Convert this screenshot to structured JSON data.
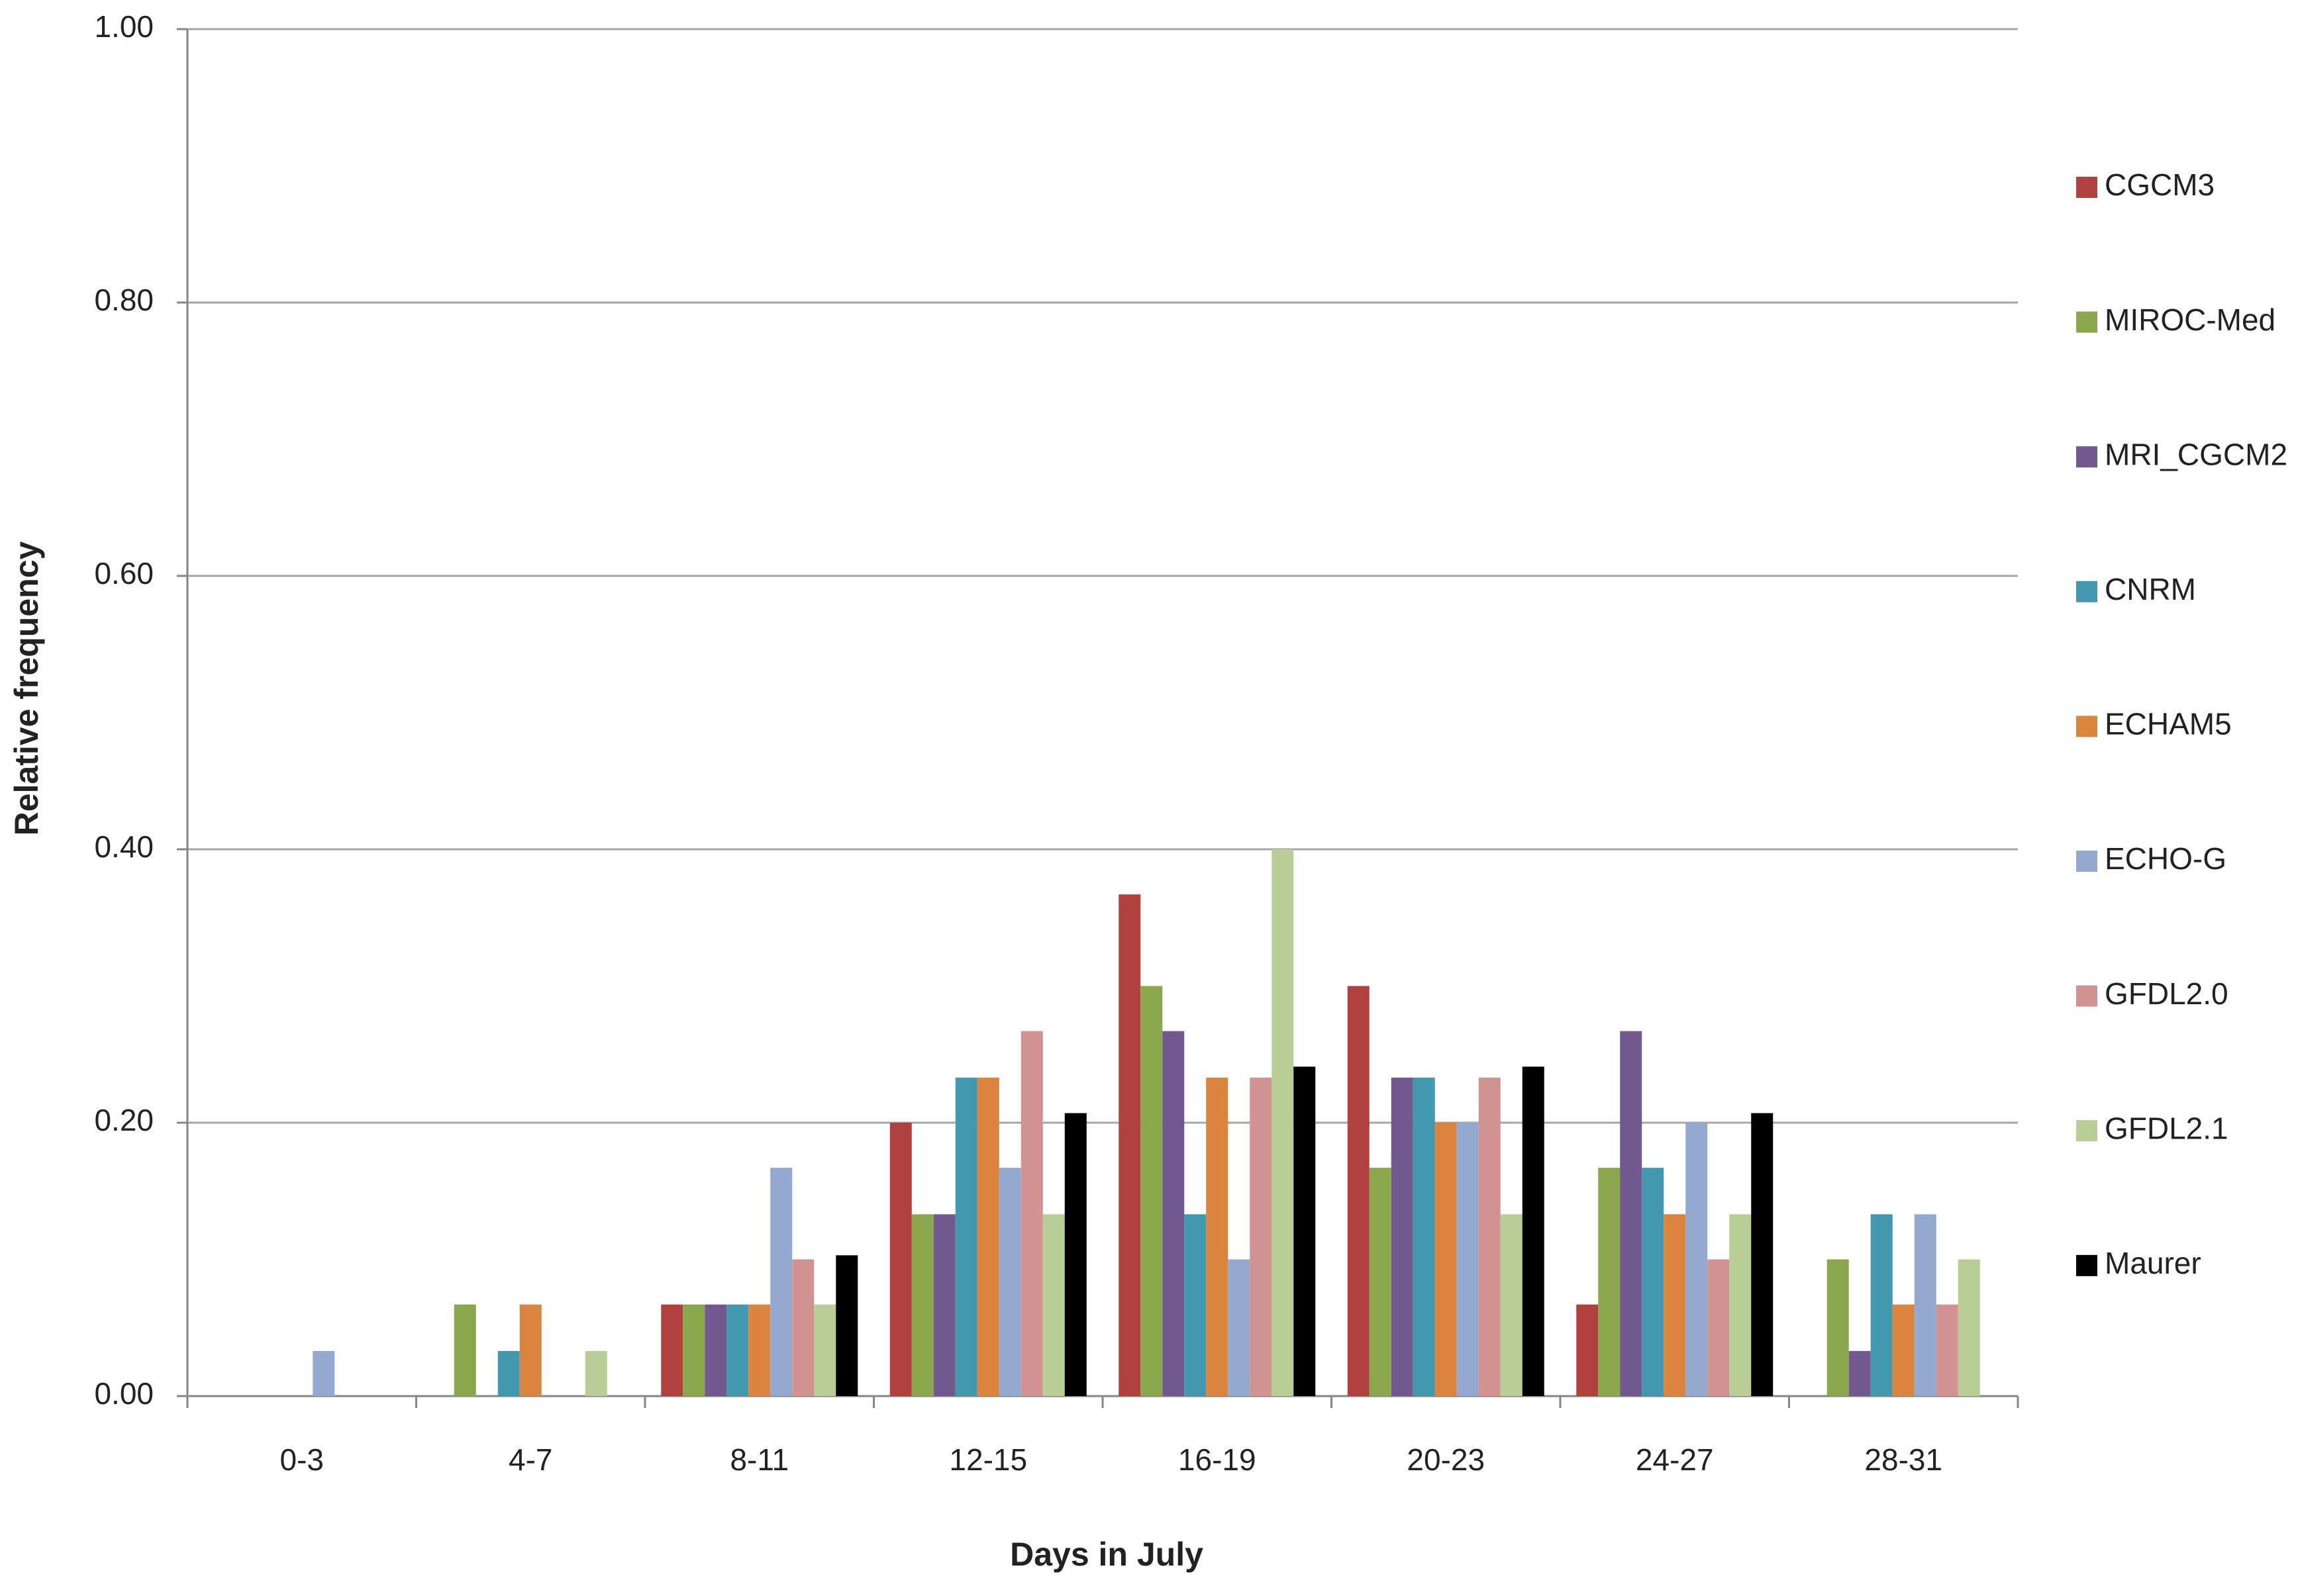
{
  "chart_data": {
    "type": "bar",
    "x_label": "Days in July",
    "y_label": "Relative frequency",
    "categories": [
      "0-3",
      "4-7",
      "8-11",
      "12-15",
      "16-19",
      "20-23",
      "24-27",
      "28-31"
    ],
    "series": [
      {
        "name": "CGCM3",
        "color": "#b0413e",
        "values": [
          0,
          0,
          0.067,
          0.2,
          0.367,
          0.3,
          0.067,
          0
        ]
      },
      {
        "name": "MIROC-Med",
        "color": "#8aa84b",
        "values": [
          0,
          0.067,
          0.067,
          0.133,
          0.3,
          0.167,
          0.167,
          0.1
        ]
      },
      {
        "name": "MRI_CGCM2",
        "color": "#71588f",
        "values": [
          0,
          0,
          0.067,
          0.133,
          0.267,
          0.233,
          0.267,
          0.033
        ]
      },
      {
        "name": "CNRM",
        "color": "#4298ae",
        "values": [
          0,
          0.033,
          0.067,
          0.233,
          0.133,
          0.233,
          0.167,
          0.133
        ]
      },
      {
        "name": "ECHAM5",
        "color": "#db843d",
        "values": [
          0,
          0.067,
          0.067,
          0.233,
          0.233,
          0.2,
          0.133,
          0.067
        ]
      },
      {
        "name": "ECHO-G",
        "color": "#93a9cf",
        "values": [
          0.033,
          0,
          0.167,
          0.167,
          0.1,
          0.2,
          0.2,
          0.133
        ]
      },
      {
        "name": "GFDL2.0",
        "color": "#d19392",
        "values": [
          0,
          0,
          0.1,
          0.267,
          0.233,
          0.233,
          0.1,
          0.067
        ]
      },
      {
        "name": "GFDL2.1",
        "color": "#b9cd96",
        "values": [
          0,
          0.033,
          0.067,
          0.133,
          0.4,
          0.133,
          0.133,
          0.1
        ]
      },
      {
        "name": "Maurer",
        "color": "#000000",
        "values": [
          0,
          0,
          0.103,
          0.207,
          0.241,
          0.241,
          0.207,
          0
        ]
      }
    ],
    "ylim": [
      0,
      1
    ],
    "yticks": [
      {
        "value": 0,
        "label": "0.00"
      },
      {
        "value": 0.2,
        "label": "0.20"
      },
      {
        "value": 0.4,
        "label": "0.40"
      },
      {
        "value": 0.6,
        "label": "0.60"
      },
      {
        "value": 0.8,
        "label": "0.80"
      },
      {
        "value": 1,
        "label": "1.00"
      }
    ],
    "grid": true,
    "legend": "right"
  }
}
